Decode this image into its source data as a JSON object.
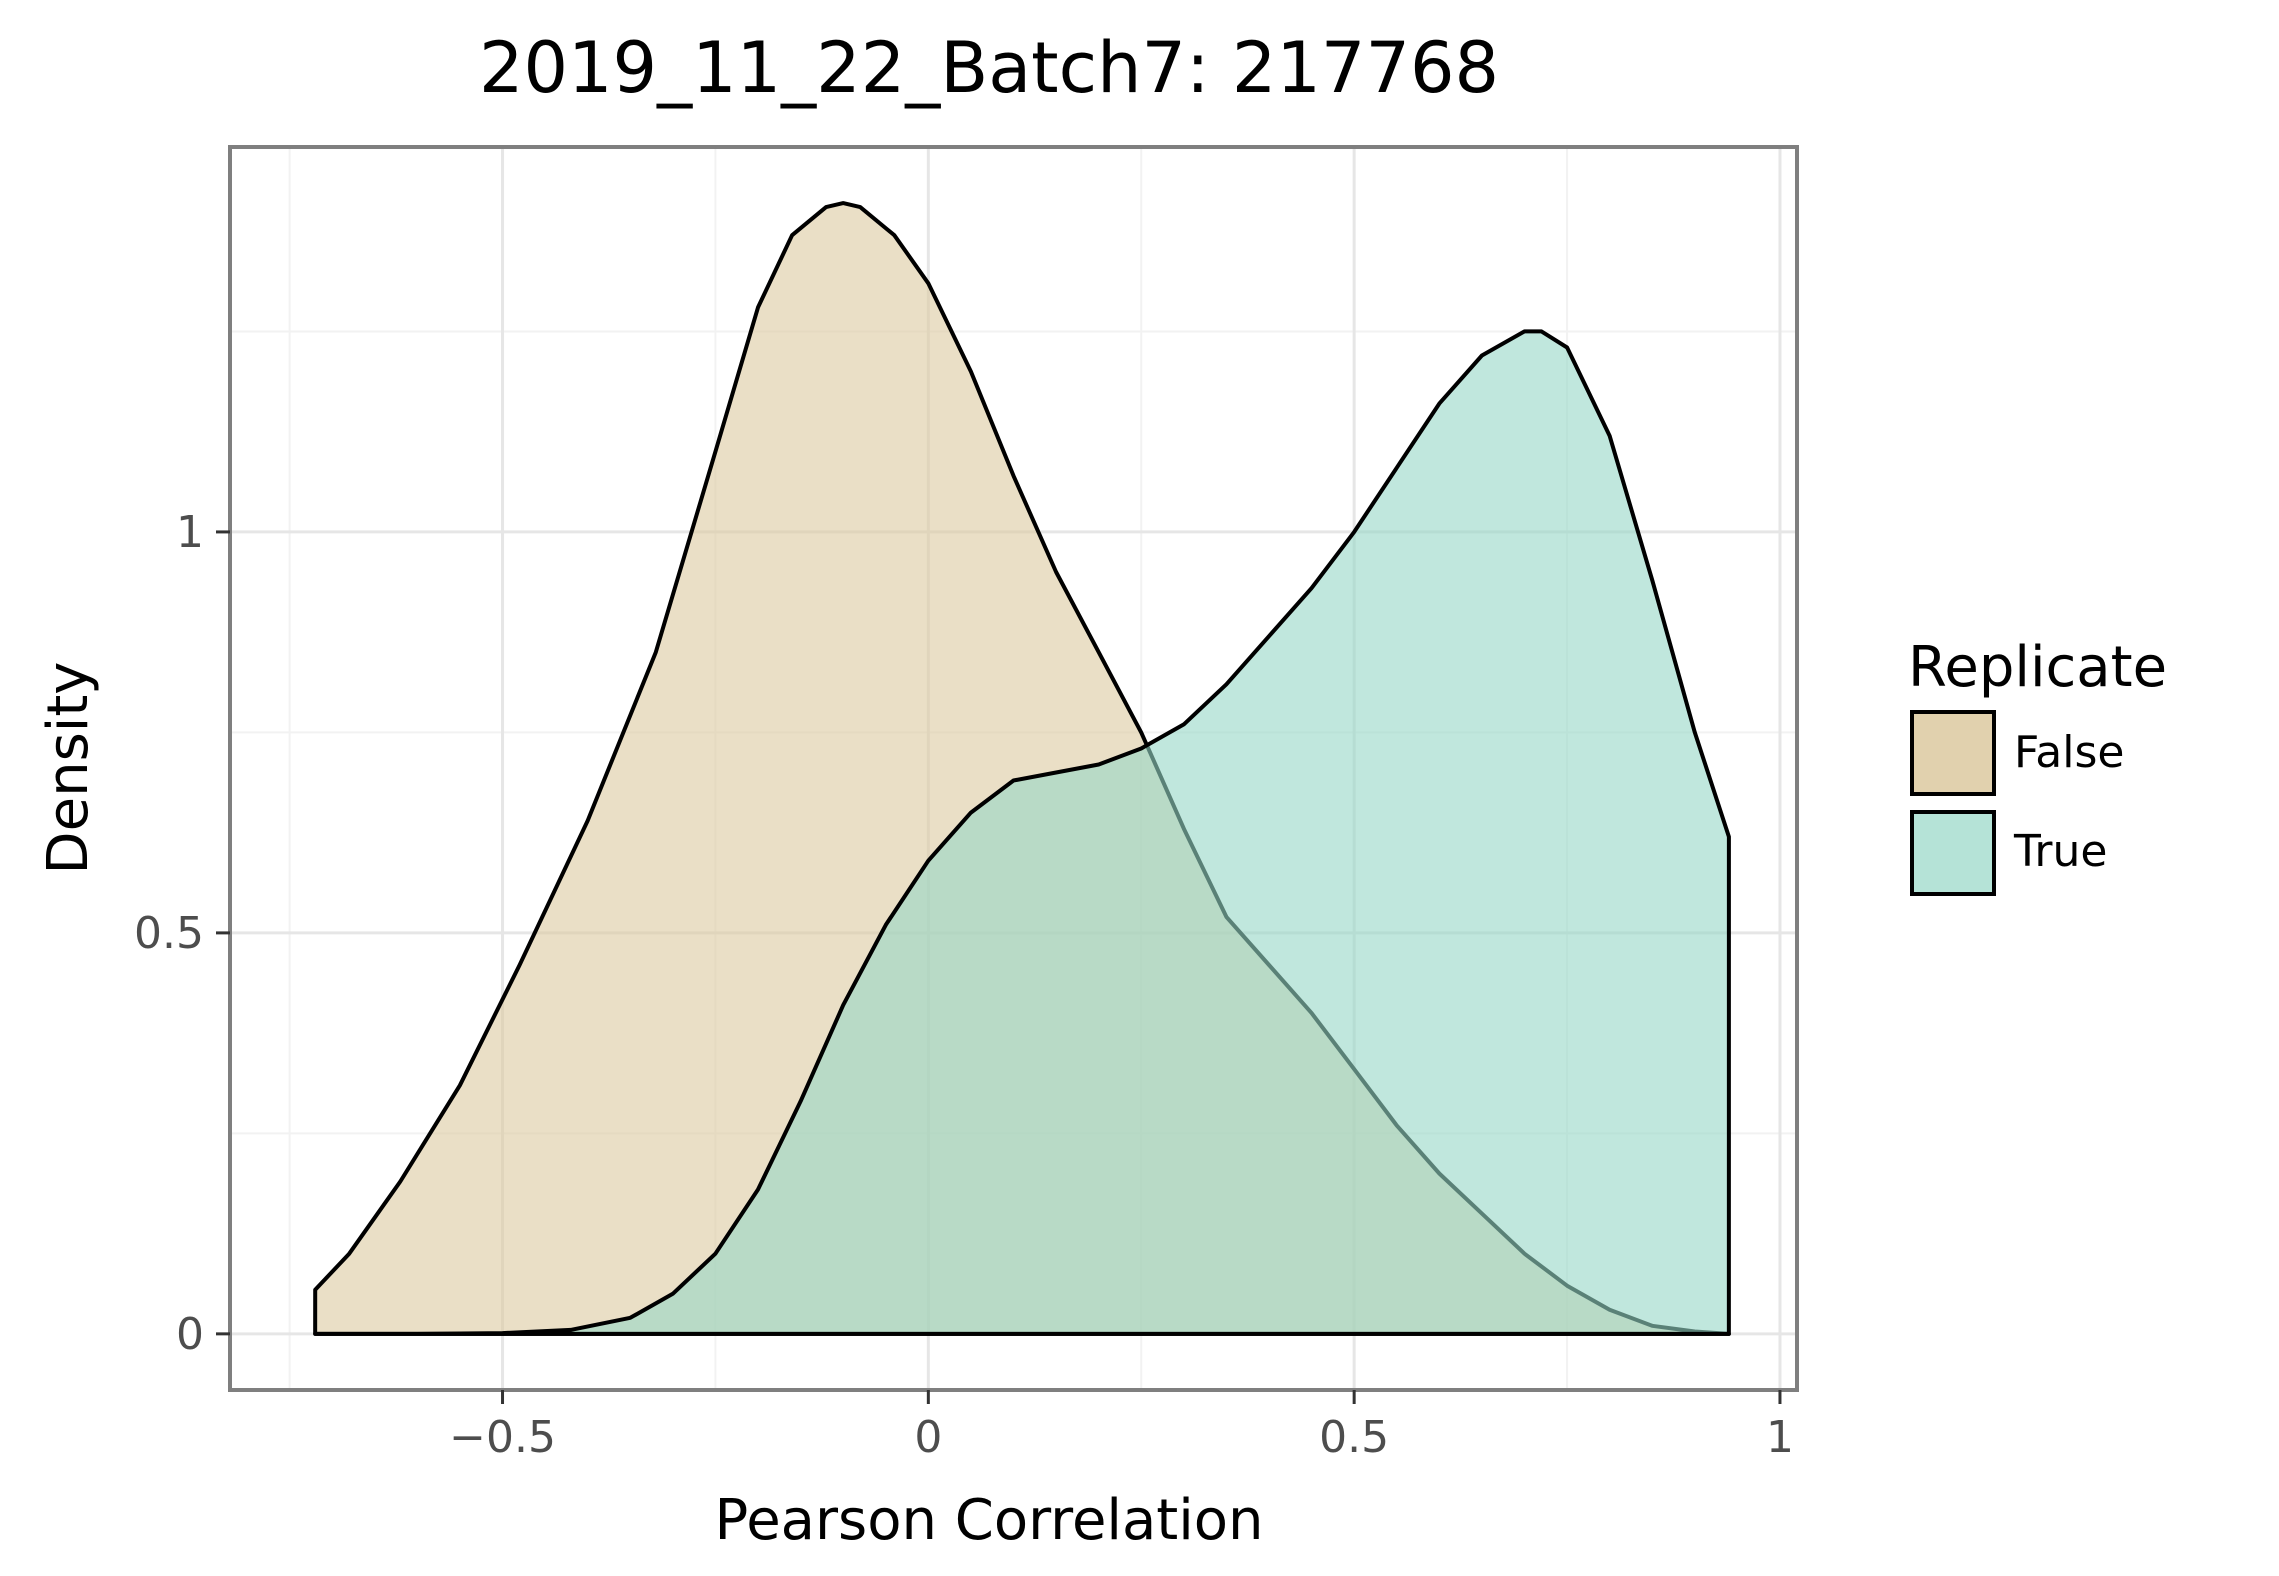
{
  "chart_data": {
    "type": "area",
    "title": "2019_11_22_Batch7: 217768",
    "xlabel": "Pearson Correlation",
    "ylabel": "Density",
    "xlim": [
      -0.82,
      1.02
    ],
    "ylim": [
      -0.07,
      1.48
    ],
    "x_ticks": [
      -0.5,
      0,
      0.5,
      1
    ],
    "x_tick_labels": [
      "−0.5",
      "0",
      "0.5",
      "1"
    ],
    "y_ticks": [
      0,
      0.5,
      1
    ],
    "y_tick_labels": [
      "0",
      "0.5",
      "1"
    ],
    "x_minor_ticks": [
      -0.75,
      -0.25,
      0.25,
      0.75
    ],
    "y_minor_ticks": [
      0.25,
      0.75,
      1.25
    ],
    "grid": true,
    "legend": {
      "title": "Replicate",
      "placement": "right"
    },
    "series": [
      {
        "name": "False",
        "fill": "#dcc9a0",
        "fill_opacity": 0.6,
        "x": [
          -0.72,
          -0.68,
          -0.62,
          -0.55,
          -0.48,
          -0.4,
          -0.32,
          -0.25,
          -0.2,
          -0.16,
          -0.12,
          -0.1,
          -0.08,
          -0.04,
          0,
          0.05,
          0.1,
          0.15,
          0.2,
          0.25,
          0.3,
          0.35,
          0.4,
          0.45,
          0.5,
          0.55,
          0.6,
          0.65,
          0.7,
          0.75,
          0.8,
          0.85,
          0.9,
          0.94
        ],
        "y": [
          0.055,
          0.1,
          0.19,
          0.31,
          0.46,
          0.64,
          0.85,
          1.1,
          1.28,
          1.37,
          1.405,
          1.41,
          1.405,
          1.37,
          1.31,
          1.2,
          1.07,
          0.95,
          0.85,
          0.75,
          0.63,
          0.52,
          0.46,
          0.4,
          0.33,
          0.26,
          0.2,
          0.15,
          0.1,
          0.06,
          0.03,
          0.01,
          0.003,
          0.0
        ]
      },
      {
        "name": "True",
        "fill": "#96d7c6",
        "fill_opacity": 0.6,
        "x": [
          -0.72,
          -0.6,
          -0.5,
          -0.42,
          -0.35,
          -0.3,
          -0.25,
          -0.2,
          -0.15,
          -0.1,
          -0.05,
          0,
          0.05,
          0.1,
          0.15,
          0.2,
          0.25,
          0.3,
          0.35,
          0.4,
          0.45,
          0.5,
          0.55,
          0.6,
          0.65,
          0.7,
          0.72,
          0.75,
          0.8,
          0.85,
          0.9,
          0.94
        ],
        "y": [
          0.0,
          0.0,
          0.001,
          0.005,
          0.02,
          0.05,
          0.1,
          0.18,
          0.29,
          0.41,
          0.51,
          0.59,
          0.65,
          0.69,
          0.7,
          0.71,
          0.73,
          0.76,
          0.81,
          0.87,
          0.93,
          1.0,
          1.08,
          1.16,
          1.22,
          1.25,
          1.25,
          1.23,
          1.12,
          0.94,
          0.75,
          0.62
        ]
      }
    ]
  }
}
